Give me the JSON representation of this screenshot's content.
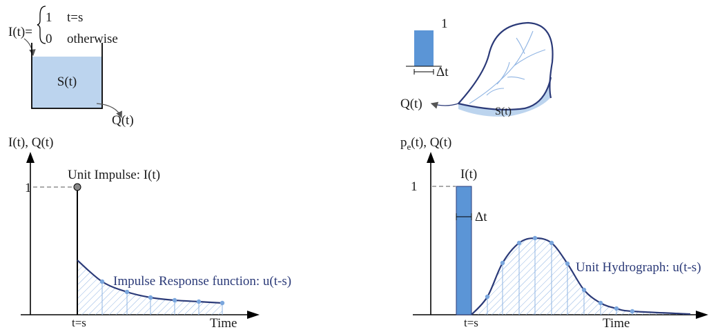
{
  "tank": {
    "lhs": "I(t)=",
    "case1_value": "1",
    "case1_cond": "t=s",
    "case2_value": "0",
    "case2_cond": "otherwise",
    "storage_label": "S(t)",
    "outflow_label": "Q(t)"
  },
  "watershed": {
    "pulse_height_label": "1",
    "pulse_width_label": "Δt",
    "outflow_label": "Q(t)",
    "storage_label": "S(t)"
  },
  "left_plot": {
    "y_axis_label": "I(t), Q(t)",
    "y_tick": "1",
    "impulse_label": "Unit Impulse: I(t)",
    "response_label": "Impulse Response function: u(t-s)",
    "x_tick": "t=s",
    "x_axis_label": "Time"
  },
  "right_plot": {
    "y_axis_label_main": "p",
    "y_axis_label_sub": "e",
    "y_axis_label_rest": "(t), Q(t)",
    "y_tick": "1",
    "pulse_label": "I(t)",
    "pulse_width_label": "Δt",
    "hydrograph_label": "Unit Hydrograph: u(t-s)",
    "x_tick": "t=s",
    "x_axis_label": "Time"
  },
  "colors": {
    "water_fill": "#bcd4ee",
    "pulse_fill": "#5b95d6",
    "curve": "#2b3a78",
    "markers": "#7aa6dd",
    "hatch": "#8fb4e3",
    "axis": "#000000"
  }
}
